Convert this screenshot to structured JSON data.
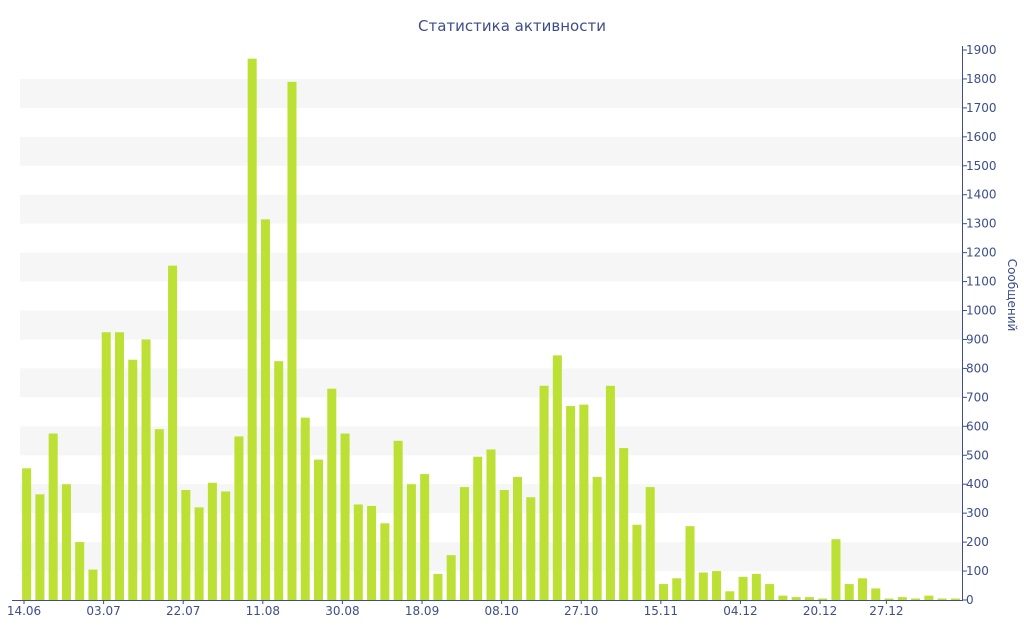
{
  "chart_data": {
    "type": "bar",
    "title": "Статистика активности",
    "ylabel": "Сообщений",
    "xlabel": "",
    "ylim": [
      0,
      1900
    ],
    "y_ticks": [
      0,
      100,
      200,
      300,
      400,
      500,
      600,
      700,
      800,
      900,
      1000,
      1100,
      1200,
      1300,
      1400,
      1500,
      1600,
      1700,
      1800,
      1900
    ],
    "y_axis_position": "right",
    "grid": "alternating horizontal bands",
    "x_tick_labels": [
      {
        "label": "14.06",
        "index": 0
      },
      {
        "label": "03.07",
        "index": 6
      },
      {
        "label": "22.07",
        "index": 12
      },
      {
        "label": "11.08",
        "index": 18
      },
      {
        "label": "30.08",
        "index": 24
      },
      {
        "label": "18.09",
        "index": 30
      },
      {
        "label": "08.10",
        "index": 36
      },
      {
        "label": "27.10",
        "index": 42
      },
      {
        "label": "15.11",
        "index": 48
      },
      {
        "label": "04.12",
        "index": 54
      },
      {
        "label": "20.12",
        "index": 60
      },
      {
        "label": "27.12",
        "index": 65
      }
    ],
    "values": [
      455,
      365,
      575,
      400,
      200,
      105,
      925,
      925,
      830,
      900,
      590,
      1155,
      380,
      320,
      405,
      375,
      565,
      1870,
      1315,
      825,
      1790,
      630,
      485,
      730,
      575,
      330,
      325,
      265,
      550,
      400,
      435,
      90,
      155,
      390,
      495,
      520,
      380,
      425,
      355,
      740,
      845,
      670,
      675,
      425,
      740,
      525,
      260,
      390,
      55,
      75,
      255,
      95,
      100,
      30,
      80,
      90,
      55,
      15,
      10,
      10,
      5,
      210,
      55,
      75,
      40,
      5,
      10,
      5,
      15,
      5,
      5
    ],
    "colors": {
      "bar": "#bce034",
      "text": "#3d4e8a",
      "band": "#f6f6f6",
      "axis": "#3d4e8a"
    }
  }
}
